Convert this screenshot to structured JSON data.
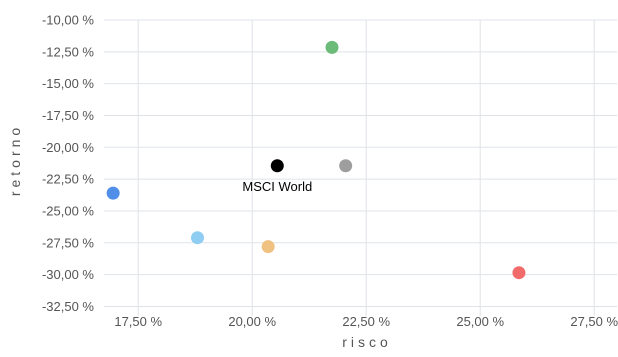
{
  "chart_data": {
    "type": "scatter",
    "title": "",
    "xlabel": "risco",
    "ylabel": "retorno",
    "xlim": [
      16.75,
      28.0
    ],
    "ylim": [
      -33.25,
      -10.0
    ],
    "grid": true,
    "x_ticks": [
      17.5,
      20.0,
      22.5,
      25.0,
      27.5
    ],
    "x_tick_labels": [
      "17,50 %",
      "20,00 %",
      "22,50 %",
      "25,00 %",
      "27,50 %"
    ],
    "y_ticks": [
      -10.0,
      -12.5,
      -15.0,
      -17.5,
      -20.0,
      -22.5,
      -25.0,
      -27.5,
      -30.0,
      -32.5
    ],
    "y_tick_labels": [
      "-10,00 %",
      "-12,50 %",
      "-15,00 %",
      "-17,50 %",
      "-20,00 %",
      "-22,50 %",
      "-25,00 %",
      "-27,50 %",
      "-30,00 %",
      "-32,50 %"
    ],
    "points": [
      {
        "x": 16.95,
        "y": -23.6,
        "color": "#4f8fea",
        "label": ""
      },
      {
        "x": 18.8,
        "y": -27.1,
        "color": "#8fcdf2",
        "label": ""
      },
      {
        "x": 20.35,
        "y": -27.8,
        "color": "#f0c281",
        "label": ""
      },
      {
        "x": 20.55,
        "y": -21.45,
        "color": "#000000",
        "label": "MSCI World"
      },
      {
        "x": 21.75,
        "y": -12.15,
        "color": "#6cbb78",
        "label": ""
      },
      {
        "x": 22.05,
        "y": -21.45,
        "color": "#9e9e9e",
        "label": ""
      },
      {
        "x": 25.85,
        "y": -29.85,
        "color": "#f26b6b",
        "label": ""
      }
    ]
  }
}
